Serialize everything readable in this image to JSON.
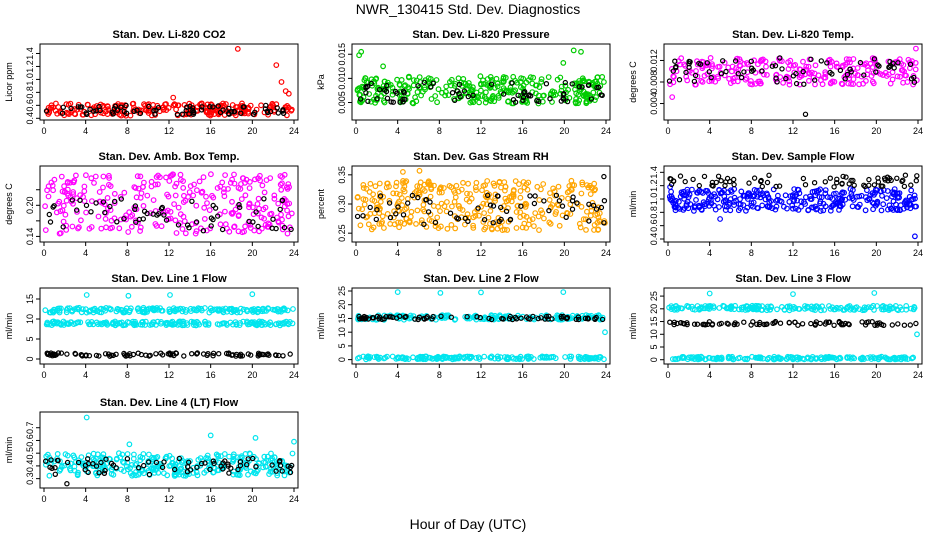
{
  "figure": {
    "title": "NWR_130415  Std. Dev. Diagnostics",
    "xlabel": "Hour of Day (UTC)"
  },
  "chart_data": [
    {
      "type": "scatter",
      "title": "Stan. Dev. Li-820 CO2",
      "ylabel": "Licor ppm",
      "xlim": [
        0,
        24
      ],
      "ylim": [
        0.42,
        1.5
      ],
      "xticks": [
        0,
        4,
        8,
        12,
        16,
        20,
        24
      ],
      "yticks": [
        0.4,
        0.6,
        0.8,
        1.0,
        1.2,
        1.4
      ],
      "ytick_labels": [
        "0.4",
        "0.6",
        "0.8",
        "1.0",
        "1.2",
        "1.4"
      ],
      "series": [
        {
          "color": "#ff0000",
          "band": [
            [
              0.44,
              0.63
            ]
          ],
          "n": 220,
          "outliers": [
            [
              18.6,
              1.47
            ],
            [
              22.3,
              1.22
            ],
            [
              22.8,
              0.96
            ],
            [
              23.2,
              0.82
            ],
            [
              23.5,
              0.78
            ],
            [
              12.4,
              0.72
            ]
          ]
        },
        {
          "color": "#000000",
          "band": [
            [
              0.46,
              0.6
            ]
          ],
          "n": 70,
          "outliers": []
        }
      ]
    },
    {
      "type": "scatter",
      "title": "Stan. Dev. Li-820 Pressure",
      "ylabel": "kPa",
      "xlim": [
        0,
        24
      ],
      "ylim": [
        0.002,
        0.0165
      ],
      "xticks": [
        0,
        4,
        8,
        12,
        16,
        20,
        24
      ],
      "yticks": [
        0.005,
        0.01,
        0.015
      ],
      "ytick_labels": [
        "0.005",
        "0.010",
        "0.015"
      ],
      "series": [
        {
          "color": "#00cc00",
          "band": [
            [
              0.0048,
              0.0105
            ]
          ],
          "n": 320,
          "outliers": [
            [
              0.3,
              0.0148
            ],
            [
              0.5,
              0.0155
            ],
            [
              2.6,
              0.0125
            ],
            [
              20.9,
              0.0158
            ],
            [
              21.6,
              0.0155
            ],
            [
              19.9,
              0.0132
            ]
          ]
        },
        {
          "color": "#000000",
          "band": [
            [
              0.005,
              0.0092
            ]
          ],
          "n": 70,
          "outliers": []
        }
      ]
    },
    {
      "type": "scatter",
      "title": "Stan. Dev. Li-820 Temp.",
      "ylabel": "degrees C",
      "xlim": [
        0,
        24
      ],
      "ylim": [
        0.0015,
        0.0145
      ],
      "xticks": [
        0,
        4,
        8,
        12,
        16,
        20,
        24
      ],
      "yticks": [
        0.004,
        0.008,
        0.012
      ],
      "ytick_labels": [
        "0.004",
        "0.008",
        "0.012"
      ],
      "series": [
        {
          "color": "#ff00ff",
          "band": [
            [
              0.0075,
              0.0125
            ]
          ],
          "n": 240,
          "outliers": [
            [
              0.4,
              0.0052
            ],
            [
              23.8,
              0.0142
            ]
          ]
        },
        {
          "color": "#000000",
          "band": [
            [
              0.0075,
              0.0125
            ]
          ],
          "n": 70,
          "outliers": [
            [
              13.2,
              0.002
            ]
          ]
        }
      ]
    },
    {
      "type": "scatter",
      "title": "Stan. Dev. Amb. Box Temp.",
      "ylabel": "degrees C",
      "xlim": [
        0,
        24
      ],
      "ylim": [
        0.135,
        0.27
      ],
      "xticks": [
        0,
        4,
        8,
        12,
        16,
        20,
        24
      ],
      "yticks": [
        0.14,
        0.17,
        0.2,
        0.23
      ],
      "ytick_labels": [
        "0.14",
        "",
        "0.20",
        ""
      ],
      "series": [
        {
          "color": "#ff00ff",
          "band": [
            [
              0.145,
              0.26
            ]
          ],
          "n": 300,
          "outliers": []
        },
        {
          "color": "#000000",
          "band": [
            [
              0.15,
              0.215
            ]
          ],
          "n": 60,
          "outliers": []
        }
      ]
    },
    {
      "type": "scatter",
      "title": "Stan. Dev. Gas Stream RH",
      "ylabel": "percent",
      "xlim": [
        0,
        24
      ],
      "ylim": [
        0.24,
        0.36
      ],
      "xticks": [
        0,
        4,
        8,
        12,
        16,
        20,
        24
      ],
      "yticks": [
        0.25,
        0.3,
        0.35
      ],
      "ytick_labels": [
        "0.25",
        "0.30",
        "0.35"
      ],
      "series": [
        {
          "color": "#ffa500",
          "band": [
            [
              0.255,
              0.34
            ]
          ],
          "n": 340,
          "outliers": [
            [
              4.5,
              0.355
            ],
            [
              6.1,
              0.357
            ]
          ]
        },
        {
          "color": "#000000",
          "band": [
            [
              0.265,
              0.315
            ]
          ],
          "n": 60,
          "outliers": [
            [
              23.8,
              0.347
            ]
          ]
        }
      ]
    },
    {
      "type": "scatter",
      "title": "Stan. Dev. Sample Flow",
      "ylabel": "ml/min",
      "xlim": [
        0,
        24
      ],
      "ylim": [
        0.4,
        1.45
      ],
      "xticks": [
        0,
        4,
        8,
        12,
        16,
        20,
        24
      ],
      "yticks": [
        0.4,
        0.6,
        0.8,
        1.0,
        1.2,
        1.4
      ],
      "ytick_labels": [
        "0.4",
        "0.6",
        "0.8",
        "1.0",
        "1.2",
        "1.4"
      ],
      "series": [
        {
          "color": "#0000ff",
          "band": [
            [
              0.82,
              1.15
            ]
          ],
          "n": 320,
          "outliers": [
            [
              23.7,
              0.44
            ],
            [
              0.2,
              1.18
            ],
            [
              5.0,
              0.7
            ]
          ]
        },
        {
          "color": "#000000",
          "band": [
            [
              1.18,
              1.36
            ]
          ],
          "n": 70,
          "outliers": []
        }
      ]
    },
    {
      "type": "scatter",
      "title": "Stan. Dev. Line 1 Flow",
      "ylabel": "ml/min",
      "xlim": [
        0,
        24
      ],
      "ylim": [
        -0.5,
        17
      ],
      "xticks": [
        0,
        4,
        8,
        12,
        16,
        20,
        24
      ],
      "yticks": [
        0,
        5,
        10,
        15
      ],
      "ytick_labels": [
        "0",
        "5",
        "10",
        "15"
      ],
      "series": [
        {
          "color": "#00e5ee",
          "band": [
            [
              11.6,
              12.8
            ],
            [
              8.4,
              9.4
            ]
          ],
          "n": 360,
          "outliers": [
            [
              4.1,
              16.0
            ],
            [
              8.1,
              15.8
            ],
            [
              12.1,
              16.0
            ],
            [
              20.0,
              16.2
            ],
            [
              23.9,
              12.5
            ]
          ]
        },
        {
          "color": "#000000",
          "band": [
            [
              0.7,
              1.5
            ]
          ],
          "n": 90,
          "outliers": []
        }
      ]
    },
    {
      "type": "scatter",
      "title": "Stan. Dev. Line 2 Flow",
      "ylabel": "ml/min",
      "xlim": [
        0,
        24
      ],
      "ylim": [
        -0.5,
        25
      ],
      "xticks": [
        0,
        4,
        8,
        12,
        16,
        20,
        24
      ],
      "yticks": [
        0,
        5,
        10,
        15,
        20,
        25
      ],
      "ytick_labels": [
        "0",
        "5",
        "10",
        "15",
        "20",
        "25"
      ],
      "series": [
        {
          "color": "#00e5ee",
          "band": [
            [
              14.5,
              16.2
            ],
            [
              0.1,
              1.2
            ]
          ],
          "n": 340,
          "outliers": [
            [
              4.0,
              24.6
            ],
            [
              8.1,
              24.3
            ],
            [
              12.0,
              24.5
            ],
            [
              19.9,
              24.6
            ],
            [
              23.9,
              10.0
            ]
          ]
        },
        {
          "color": "#000000",
          "band": [
            [
              14.6,
              15.8
            ]
          ],
          "n": 80,
          "outliers": []
        }
      ]
    },
    {
      "type": "scatter",
      "title": "Stan. Dev. Line 3 Flow",
      "ylabel": "ml/min",
      "xlim": [
        0,
        24
      ],
      "ylim": [
        -0.5,
        27
      ],
      "xticks": [
        0,
        4,
        8,
        12,
        16,
        20,
        24
      ],
      "yticks": [
        0,
        5,
        10,
        15,
        20,
        25
      ],
      "ytick_labels": [
        "0",
        "5",
        "10",
        "15",
        "20",
        "25"
      ],
      "series": [
        {
          "color": "#00e5ee",
          "band": [
            [
              19.4,
              21.2
            ],
            [
              0.1,
              1.2
            ]
          ],
          "n": 340,
          "outliers": [
            [
              4.0,
              26.0
            ],
            [
              12.0,
              25.8
            ],
            [
              19.8,
              26.2
            ],
            [
              23.9,
              10.0
            ]
          ]
        },
        {
          "color": "#000000",
          "band": [
            [
              13.5,
              15.0
            ]
          ],
          "n": 80,
          "outliers": []
        }
      ]
    },
    {
      "type": "scatter",
      "title": "Stan. Dev. Line 4 (LT) Flow",
      "ylabel": "ml/min",
      "xlim": [
        0,
        24
      ],
      "ylim": [
        0.25,
        0.8
      ],
      "xticks": [
        0,
        4,
        8,
        12,
        16,
        20,
        24
      ],
      "yticks": [
        0.3,
        0.4,
        0.5,
        0.6,
        0.7
      ],
      "ytick_labels": [
        "0.3",
        "0.4",
        "0.5",
        "0.6",
        "0.7"
      ],
      "series": [
        {
          "color": "#00e5ee",
          "band": [
            [
              0.32,
              0.5
            ]
          ],
          "n": 300,
          "outliers": [
            [
              4.1,
              0.78
            ],
            [
              8.2,
              0.57
            ],
            [
              16.0,
              0.64
            ],
            [
              20.3,
              0.62
            ],
            [
              24.0,
              0.59
            ]
          ]
        },
        {
          "color": "#000000",
          "band": [
            [
              0.33,
              0.46
            ]
          ],
          "n": 70,
          "outliers": [
            [
              2.2,
              0.26
            ]
          ]
        }
      ]
    }
  ]
}
